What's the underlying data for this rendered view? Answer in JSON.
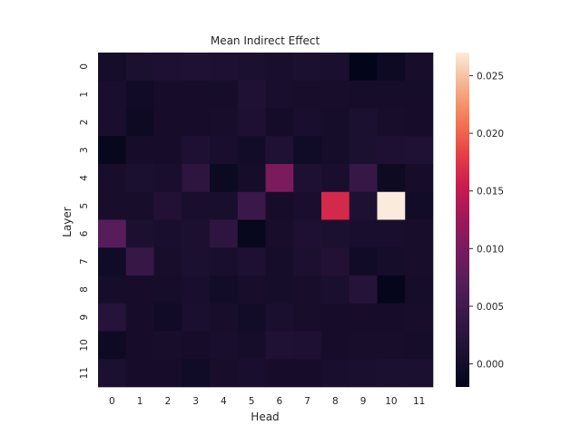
{
  "chart_data": {
    "type": "heatmap",
    "title": "Mean Indirect Effect",
    "xlabel": "Head",
    "ylabel": "Layer",
    "x_categories": [
      "0",
      "1",
      "2",
      "3",
      "4",
      "5",
      "6",
      "7",
      "8",
      "9",
      "10",
      "11"
    ],
    "y_categories": [
      "0",
      "1",
      "2",
      "3",
      "4",
      "5",
      "6",
      "7",
      "8",
      "9",
      "10",
      "11"
    ],
    "colorbar": {
      "min": -0.002,
      "max": 0.027,
      "ticks": [
        0.0,
        0.005,
        0.01,
        0.015,
        0.02,
        0.025
      ],
      "tick_labels": [
        "0.000",
        "0.005",
        "0.010",
        "0.015",
        "0.020",
        "0.025"
      ],
      "colormap": "rocket"
    },
    "grid": false,
    "values": [
      [
        0.0,
        0.0008,
        0.001,
        0.0012,
        0.001,
        0.0008,
        0.0005,
        0.0008,
        0.0006,
        -0.002,
        -0.0008,
        0.0003
      ],
      [
        0.0004,
        -0.0003,
        0.0002,
        0.0002,
        0.0,
        0.0012,
        0.0004,
        0.0003,
        0.0003,
        0.0001,
        0.0001,
        0.0001
      ],
      [
        0.0005,
        -0.0008,
        0.0002,
        0.0002,
        0.0003,
        0.001,
        -0.0001,
        0.0005,
        0.0,
        0.0008,
        0.0003,
        0.0002
      ],
      [
        -0.0015,
        0.0002,
        0.0002,
        0.001,
        0.0005,
        -0.0002,
        0.0012,
        -0.0005,
        0.0,
        0.0008,
        0.001,
        0.0012
      ],
      [
        0.0003,
        0.0008,
        0.0005,
        0.003,
        -0.001,
        0.0,
        0.01,
        0.001,
        0.0005,
        0.004,
        -0.0008,
        0.0002
      ],
      [
        0.0003,
        0.0003,
        0.0015,
        0.0005,
        0.0005,
        0.0045,
        0.0002,
        0.0005,
        0.0165,
        0.001,
        0.027,
        -0.0002
      ],
      [
        0.007,
        0.0008,
        0.0004,
        0.0008,
        0.003,
        -0.0015,
        0.0003,
        0.001,
        0.0008,
        0.0005,
        0.0004,
        0.0003
      ],
      [
        -0.0005,
        0.004,
        0.0003,
        0.0008,
        0.0005,
        0.001,
        0.0,
        0.0008,
        0.0015,
        -0.0003,
        0.0,
        0.0003
      ],
      [
        0.0,
        0.0002,
        0.0,
        0.0005,
        -0.0002,
        0.0003,
        0.0,
        0.0003,
        0.0006,
        0.002,
        -0.0018,
        0.0001
      ],
      [
        0.002,
        0.0002,
        -0.0004,
        0.0006,
        0.0003,
        -0.0002,
        0.0006,
        0.0003,
        0.0002,
        0.0002,
        0.0002,
        0.0003
      ],
      [
        -0.0008,
        0.0002,
        0.0003,
        0.0002,
        0.0004,
        0.0001,
        0.0012,
        0.001,
        0.0002,
        0.0003,
        0.0003,
        0.0
      ],
      [
        0.0008,
        0.0002,
        0.0002,
        -0.0005,
        0.0003,
        0.0005,
        0.0002,
        0.0002,
        0.0004,
        0.0006,
        0.0008,
        0.0008
      ]
    ]
  }
}
